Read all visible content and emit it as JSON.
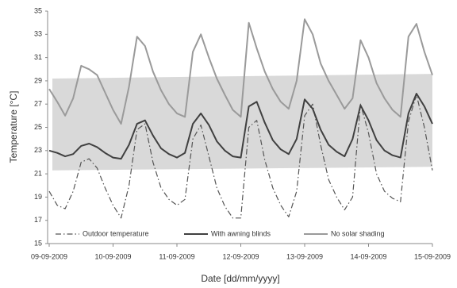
{
  "chart_data": {
    "type": "line",
    "x_label": "Date [dd/mm/yyyy]",
    "y_label": "Temperature [°C]",
    "categories": [
      "09-09-2009",
      null,
      null,
      null,
      null,
      null,
      null,
      null,
      "10-09-2009",
      null,
      null,
      null,
      null,
      null,
      null,
      null,
      "11-09-2009",
      null,
      null,
      null,
      null,
      null,
      null,
      null,
      "12-09-2009",
      null,
      null,
      null,
      null,
      null,
      null,
      null,
      "13-09-2009",
      null,
      null,
      null,
      null,
      null,
      null,
      null,
      "14-09-2009",
      null,
      null,
      null,
      null,
      null,
      null,
      null,
      "15-09-2009"
    ],
    "ylim": [
      15,
      35
    ],
    "yticks": [
      15,
      17,
      19,
      21,
      23,
      25,
      27,
      29,
      31,
      33,
      35
    ],
    "grid": false,
    "legend": "bottom",
    "band": {
      "lower": [
        21.3,
        21.6
      ],
      "upper": [
        29.2,
        29.6
      ],
      "color": "#d9d9d9"
    },
    "series": [
      {
        "name": "Outdoor temperature",
        "color": "#555555",
        "style": "dashdot",
        "values": [
          19.5,
          18.3,
          18.0,
          19.5,
          22.0,
          22.3,
          21.5,
          19.8,
          18.3,
          17.2,
          20.0,
          24.8,
          25.3,
          22.0,
          19.8,
          18.8,
          18.3,
          18.8,
          24.0,
          25.2,
          22.5,
          19.8,
          18.2,
          17.2,
          17.2,
          25.0,
          25.6,
          22.2,
          19.8,
          18.3,
          17.3,
          19.5,
          26.0,
          27.0,
          23.5,
          20.5,
          19.0,
          17.9,
          19.0,
          27.0,
          24.5,
          21.0,
          19.5,
          18.9,
          18.6,
          25.5,
          27.8,
          25.0,
          21.3
        ]
      },
      {
        "name": "With awning blinds",
        "color": "#404040",
        "style": "solid",
        "values": [
          23.0,
          22.8,
          22.5,
          22.7,
          23.4,
          23.6,
          23.3,
          22.8,
          22.4,
          22.3,
          23.5,
          25.3,
          25.6,
          24.3,
          23.2,
          22.7,
          22.4,
          22.8,
          25.3,
          26.2,
          25.2,
          23.8,
          23.0,
          22.5,
          22.4,
          26.8,
          27.2,
          25.4,
          23.9,
          23.1,
          22.7,
          24.0,
          27.4,
          26.6,
          24.8,
          23.5,
          22.9,
          22.5,
          24.0,
          26.9,
          25.6,
          23.9,
          23.0,
          22.6,
          22.4,
          26.2,
          27.9,
          26.8,
          25.3
        ]
      },
      {
        "name": "No solar shading",
        "color": "#9a9a9a",
        "style": "solid",
        "values": [
          28.3,
          27.2,
          26.0,
          27.5,
          30.3,
          30.0,
          29.5,
          28.0,
          26.5,
          25.3,
          28.5,
          32.8,
          32.0,
          29.8,
          28.2,
          27.0,
          26.2,
          25.9,
          31.5,
          33.0,
          31.0,
          29.2,
          27.8,
          26.5,
          25.9,
          34.0,
          31.8,
          29.8,
          28.3,
          27.2,
          26.6,
          29.0,
          34.3,
          33.0,
          30.5,
          29.0,
          27.8,
          26.6,
          27.5,
          32.5,
          31.0,
          28.8,
          27.5,
          26.5,
          25.9,
          32.8,
          33.9,
          31.5,
          29.5
        ]
      }
    ]
  }
}
